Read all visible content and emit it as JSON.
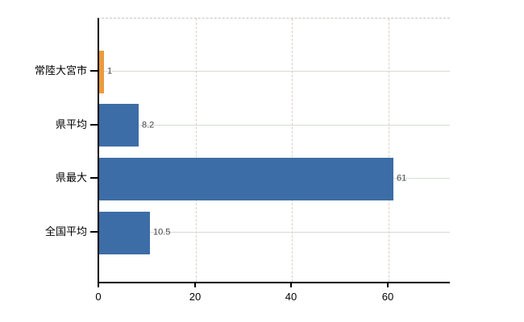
{
  "chart_data": {
    "type": "bar",
    "orientation": "horizontal",
    "title": "",
    "xlabel": "",
    "ylabel": "",
    "categories": [
      "常陸大宮市",
      "県平均",
      "県最大",
      "全国平均"
    ],
    "values": [
      1,
      8.2,
      61,
      10.5
    ],
    "value_labels": [
      "1",
      "8.2",
      "61",
      "10.5"
    ],
    "bar_colors": [
      "#ea9a3d",
      "#3d6da6",
      "#3d6da6",
      "#3d6da6"
    ],
    "x_ticks": [
      0,
      20,
      40,
      60
    ],
    "x_tick_labels": [
      "0",
      "20",
      "40",
      "60"
    ],
    "xlim": [
      0,
      73
    ],
    "grid": true,
    "legend": "none"
  },
  "colors": {
    "highlight_bar": "#ea9a3d",
    "default_bar": "#3d6da6",
    "axis": "#000000",
    "hgrid": "#d5ddd4",
    "vgrid": "#d8d0ca",
    "value_text": "#444444",
    "label_text": "#000000",
    "background": "#ffffff"
  }
}
